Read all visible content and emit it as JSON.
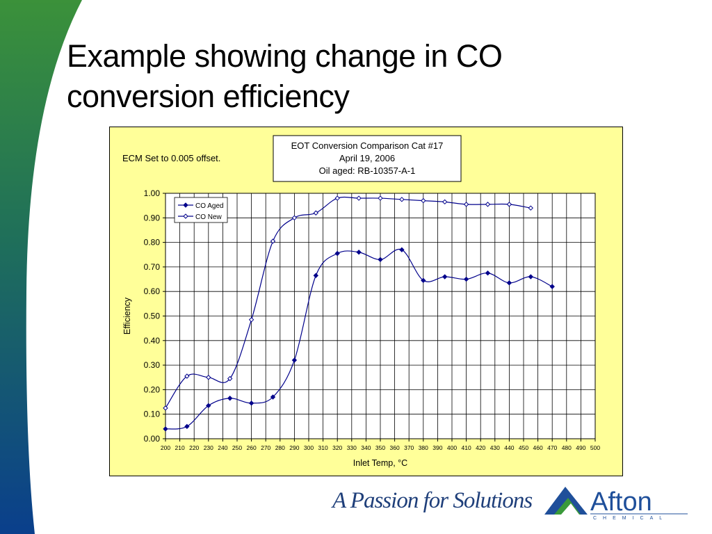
{
  "slide": {
    "title_line1": "Example showing change in CO",
    "title_line2": "conversion efficiency"
  },
  "footer": {
    "tagline": "A Passion for Solutions",
    "logo_word": "Afton",
    "logo_subword": "CHEMICAL"
  },
  "colors": {
    "band_top": "#3a8f3a",
    "band_bottom": "#0a3f8c",
    "plot_bg": "#ffff99",
    "series": "#00008b",
    "logo_blue": "#1f4f9a",
    "logo_green": "#3a9a3a"
  },
  "chart_data": {
    "type": "line",
    "title_lines": [
      "EOT Conversion Comparison Cat #17",
      "April 19, 2006",
      "Oil  aged:  RB-10357-A-1"
    ],
    "annotation": "ECM Set to 0.005 offset.",
    "xlabel": "Inlet Temp, °C",
    "ylabel": "Efficiency",
    "xlim": [
      200,
      500
    ],
    "ylim": [
      0,
      1
    ],
    "x_ticks": [
      200,
      210,
      220,
      230,
      240,
      250,
      260,
      270,
      280,
      290,
      300,
      310,
      320,
      330,
      340,
      350,
      360,
      370,
      380,
      390,
      400,
      410,
      420,
      430,
      440,
      450,
      460,
      470,
      480,
      490,
      500
    ],
    "y_ticks": [
      "0.00",
      "0.10",
      "0.20",
      "0.30",
      "0.40",
      "0.50",
      "0.60",
      "0.70",
      "0.80",
      "0.90",
      "1.00"
    ],
    "grid": true,
    "legend_position": "top-left",
    "series": [
      {
        "name": "CO Aged",
        "marker": "filled-diamond",
        "x": [
          200,
          215,
          230,
          245,
          260,
          275,
          290,
          305,
          320,
          335,
          350,
          365,
          380,
          395,
          410,
          425,
          440,
          455,
          470
        ],
        "y": [
          0.04,
          0.05,
          0.135,
          0.165,
          0.145,
          0.17,
          0.32,
          0.665,
          0.755,
          0.76,
          0.73,
          0.77,
          0.645,
          0.66,
          0.65,
          0.675,
          0.635,
          0.66,
          0.62
        ]
      },
      {
        "name": "CO New",
        "marker": "open-diamond",
        "x": [
          200,
          215,
          230,
          245,
          260,
          275,
          290,
          305,
          320,
          335,
          350,
          365,
          380,
          395,
          410,
          425,
          440,
          455
        ],
        "y": [
          0.125,
          0.255,
          0.25,
          0.245,
          0.485,
          0.805,
          0.9,
          0.92,
          0.98,
          0.98,
          0.98,
          0.975,
          0.97,
          0.965,
          0.955,
          0.955,
          0.955,
          0.94
        ]
      }
    ]
  }
}
